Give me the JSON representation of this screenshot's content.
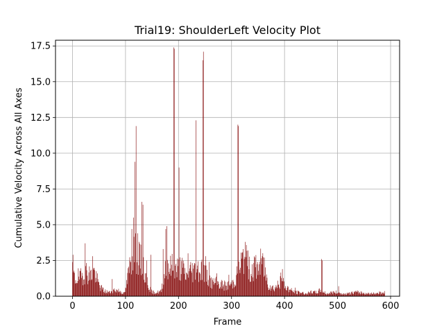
{
  "chart_data": {
    "type": "bar",
    "title": "Trial19: ShoulderLeft Velocity Plot",
    "xlabel": "Frame",
    "ylabel": "Cumulative Velocity Across All Axes",
    "xlim": [
      -32,
      617
    ],
    "ylim": [
      0,
      17.9
    ],
    "xticks": [
      0,
      100,
      200,
      300,
      400,
      500,
      600
    ],
    "yticks": [
      0.0,
      2.5,
      5.0,
      7.5,
      10.0,
      12.5,
      15.0,
      17.5
    ],
    "xtick_labels": [
      "0",
      "100",
      "200",
      "300",
      "400",
      "500",
      "600"
    ],
    "ytick_labels": [
      "0.0",
      "2.5",
      "5.0",
      "7.5",
      "10.0",
      "12.5",
      "15.0",
      "17.5"
    ],
    "grid": true,
    "bar_color": "#800000",
    "frame_count": 590,
    "baseline": [
      [
        0,
        1.8
      ],
      [
        2,
        1.6
      ],
      [
        5,
        1.3
      ],
      [
        10,
        1.5
      ],
      [
        15,
        1.4
      ],
      [
        20,
        1.7
      ],
      [
        25,
        1.9
      ],
      [
        30,
        1.8
      ],
      [
        35,
        1.6
      ],
      [
        40,
        2.0
      ],
      [
        45,
        1.4
      ],
      [
        50,
        0.9
      ],
      [
        55,
        0.6
      ],
      [
        60,
        0.4
      ],
      [
        70,
        0.3
      ],
      [
        80,
        0.5
      ],
      [
        90,
        0.4
      ],
      [
        97,
        0.2
      ],
      [
        100,
        0.5
      ],
      [
        105,
        1.6
      ],
      [
        110,
        2.8
      ],
      [
        115,
        3.5
      ],
      [
        120,
        3.2
      ],
      [
        125,
        3.0
      ],
      [
        130,
        2.6
      ],
      [
        135,
        1.9
      ],
      [
        140,
        1.4
      ],
      [
        145,
        0.7
      ],
      [
        150,
        0.3
      ],
      [
        160,
        0.3
      ],
      [
        168,
        0.4
      ],
      [
        172,
        1.8
      ],
      [
        178,
        2.6
      ],
      [
        185,
        2.2
      ],
      [
        190,
        2.4
      ],
      [
        195,
        2.0
      ],
      [
        200,
        2.2
      ],
      [
        205,
        2.3
      ],
      [
        210,
        1.9
      ],
      [
        215,
        1.5
      ],
      [
        220,
        1.8
      ],
      [
        225,
        2.1
      ],
      [
        230,
        2.0
      ],
      [
        235,
        2.3
      ],
      [
        240,
        2.0
      ],
      [
        245,
        2.2
      ],
      [
        250,
        1.8
      ],
      [
        255,
        1.5
      ],
      [
        260,
        1.2
      ],
      [
        265,
        1.0
      ],
      [
        270,
        1.1
      ],
      [
        280,
        0.9
      ],
      [
        290,
        0.8
      ],
      [
        300,
        0.9
      ],
      [
        305,
        1.2
      ],
      [
        310,
        1.6
      ],
      [
        315,
        2.1
      ],
      [
        320,
        2.8
      ],
      [
        325,
        3.0
      ],
      [
        330,
        2.5
      ],
      [
        335,
        2.0
      ],
      [
        340,
        2.2
      ],
      [
        350,
        2.3
      ],
      [
        355,
        2.5
      ],
      [
        360,
        2.4
      ],
      [
        365,
        1.6
      ],
      [
        370,
        0.9
      ],
      [
        380,
        0.6
      ],
      [
        390,
        1.0
      ],
      [
        395,
        1.4
      ],
      [
        400,
        0.8
      ],
      [
        410,
        0.5
      ],
      [
        420,
        0.3
      ],
      [
        430,
        0.3
      ],
      [
        440,
        0.2
      ],
      [
        450,
        0.3
      ],
      [
        460,
        0.3
      ],
      [
        470,
        0.5
      ],
      [
        475,
        0.3
      ],
      [
        480,
        0.2
      ],
      [
        490,
        0.3
      ],
      [
        500,
        0.3
      ],
      [
        510,
        0.15
      ],
      [
        520,
        0.2
      ],
      [
        530,
        0.3
      ],
      [
        540,
        0.3
      ],
      [
        550,
        0.25
      ],
      [
        560,
        0.2
      ],
      [
        570,
        0.2
      ],
      [
        580,
        0.3
      ],
      [
        589,
        0.3
      ]
    ],
    "peaks": [
      [
        1,
        2.9
      ],
      [
        24,
        3.7
      ],
      [
        38,
        2.8
      ],
      [
        75,
        1.2
      ],
      [
        112,
        4.7
      ],
      [
        115,
        5.5
      ],
      [
        118,
        9.4
      ],
      [
        120,
        11.9
      ],
      [
        123,
        4.4
      ],
      [
        126,
        3.8
      ],
      [
        131,
        6.6
      ],
      [
        133,
        6.4
      ],
      [
        140,
        2.5
      ],
      [
        148,
        2.9
      ],
      [
        171,
        3.3
      ],
      [
        176,
        4.7
      ],
      [
        178,
        4.9
      ],
      [
        191,
        17.4
      ],
      [
        192,
        17.3
      ],
      [
        201,
        9.0
      ],
      [
        218,
        3.0
      ],
      [
        233,
        12.3
      ],
      [
        246,
        16.5
      ],
      [
        247,
        17.1
      ],
      [
        251,
        2.8
      ],
      [
        258,
        2.4
      ],
      [
        272,
        1.6
      ],
      [
        295,
        1.5
      ],
      [
        312,
        12.0
      ],
      [
        313,
        11.9
      ],
      [
        322,
        3.3
      ],
      [
        326,
        3.8
      ],
      [
        331,
        3.2
      ],
      [
        358,
        2.8
      ],
      [
        362,
        2.7
      ],
      [
        392,
        1.4
      ],
      [
        396,
        1.9
      ],
      [
        420,
        0.6
      ],
      [
        470,
        2.6
      ],
      [
        471,
        2.5
      ],
      [
        502,
        0.7
      ],
      [
        544,
        0.35
      ]
    ]
  }
}
